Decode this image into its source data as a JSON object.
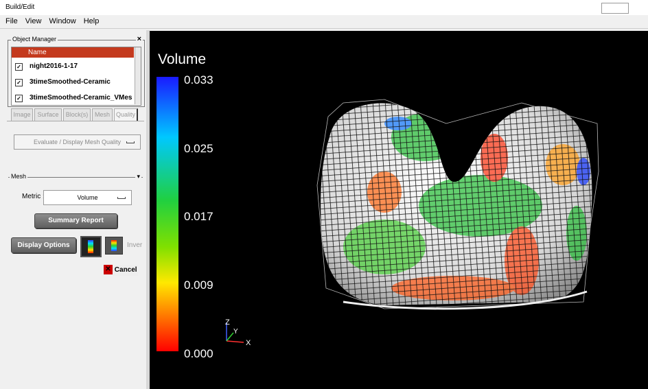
{
  "window": {
    "title": "Build/Edit"
  },
  "menu": [
    "File",
    "View",
    "Window",
    "Help"
  ],
  "object_manager": {
    "title": "Object Manager",
    "header": "Name",
    "items": [
      "night2016-1-17",
      "3timeSmoothed-Ceramic",
      "3timeSmoothed-Ceramic_VMes"
    ]
  },
  "tabs": [
    "Image",
    "Surface",
    "Block(s)",
    "Mesh",
    "Quality"
  ],
  "task_dropdown": "Evaluate / Display Mesh Quality",
  "mesh_section": {
    "title": "Mesh",
    "metric_label": "Metric :",
    "metric_value": "Volume"
  },
  "buttons": {
    "summary_report": "Summary Report",
    "display_options": "Display Options",
    "invert": "Inver",
    "cancel": "Cancel"
  },
  "viewport": {
    "colorbar": {
      "title": "Volume",
      "labels": [
        "0.033",
        "0.025",
        "0.017",
        "0.009",
        "0.000"
      ]
    },
    "axes": [
      "Z",
      "Y",
      "X"
    ]
  }
}
